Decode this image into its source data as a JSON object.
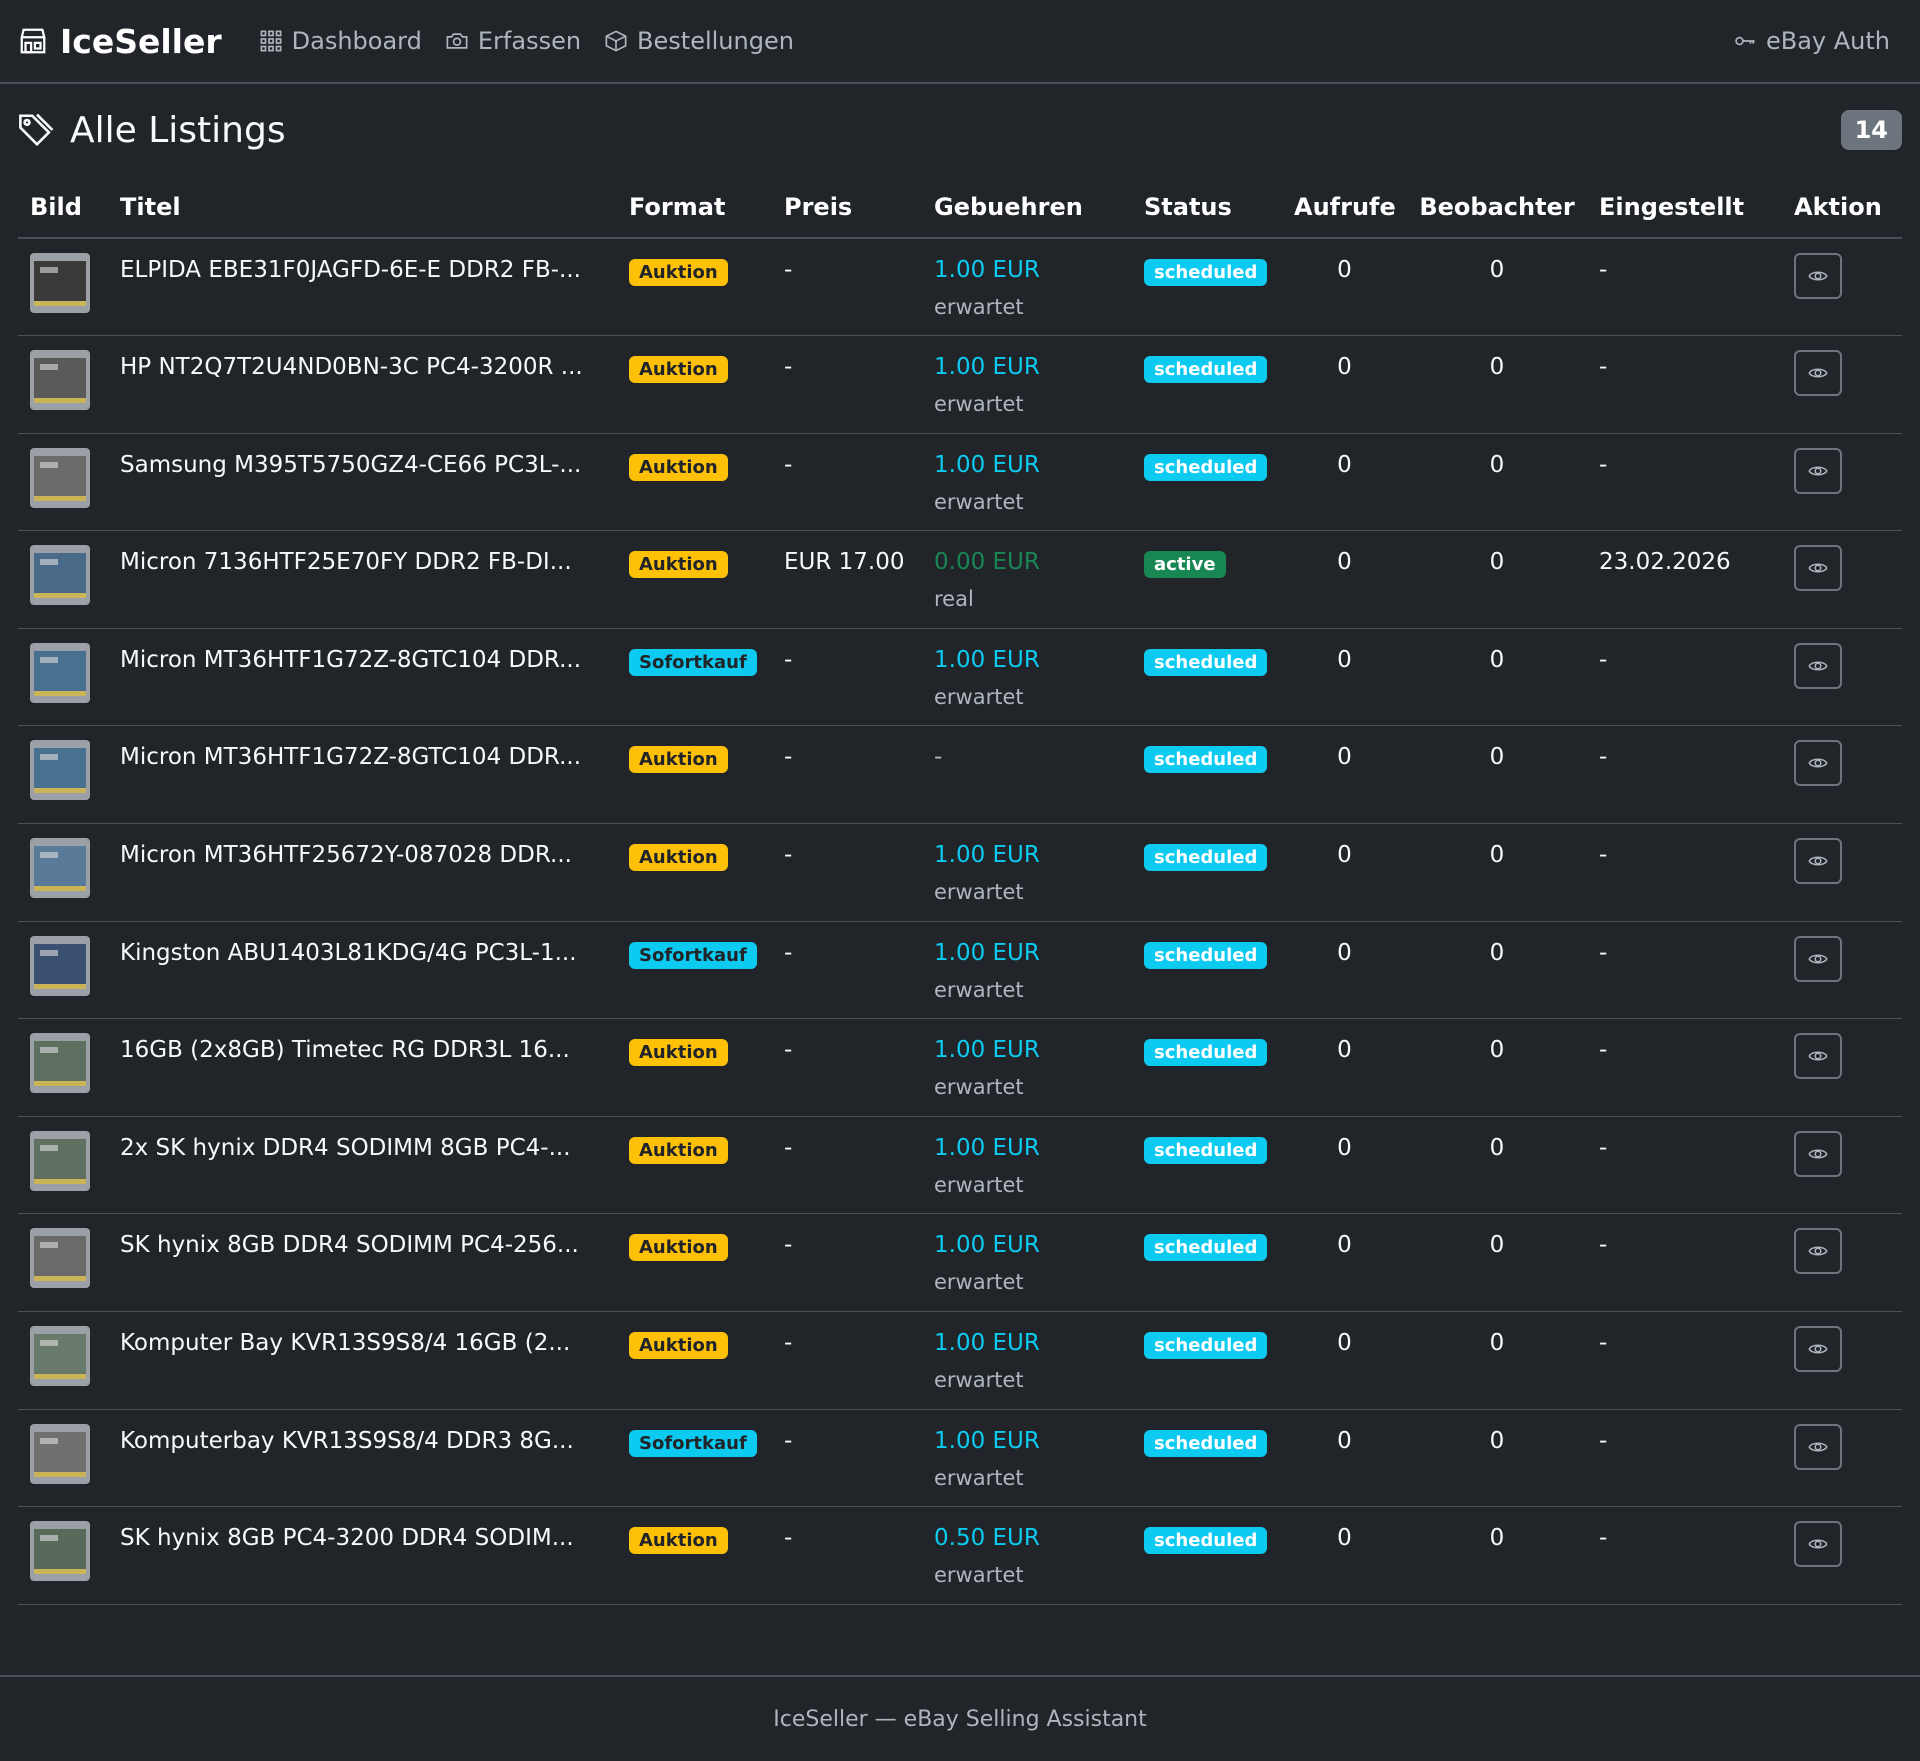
{
  "nav": {
    "brand": "IceSeller",
    "links": [
      {
        "label": "Dashboard",
        "icon": "grid-icon"
      },
      {
        "label": "Erfassen",
        "icon": "camera-icon"
      },
      {
        "label": "Bestellungen",
        "icon": "box-icon"
      }
    ],
    "auth_label": "eBay Auth"
  },
  "page": {
    "title": "Alle Listings",
    "count": "14"
  },
  "table": {
    "headers": [
      "Bild",
      "Titel",
      "Format",
      "Preis",
      "Gebuehren",
      "Status",
      "Aufrufe",
      "Beobachter",
      "Eingestellt",
      "Aktion"
    ],
    "rows": [
      {
        "title": "ELPIDA EBE31F0JAGFD-6E-E DDR2 FB-...",
        "format": "Auktion",
        "price": "-",
        "fee": "1.00 EUR",
        "fee_note": "erwartet",
        "status": "scheduled",
        "views": "0",
        "watchers": "0",
        "listed": "-",
        "thumb": "#3a3a3a"
      },
      {
        "title": "HP NT2Q7T2U4ND0BN-3C PC4-3200R ...",
        "format": "Auktion",
        "price": "-",
        "fee": "1.00 EUR",
        "fee_note": "erwartet",
        "status": "scheduled",
        "views": "0",
        "watchers": "0",
        "listed": "-",
        "thumb": "#5a5a5a"
      },
      {
        "title": "Samsung M395T5750GZ4-CE66 PC3L-...",
        "format": "Auktion",
        "price": "-",
        "fee": "1.00 EUR",
        "fee_note": "erwartet",
        "status": "scheduled",
        "views": "0",
        "watchers": "0",
        "listed": "-",
        "thumb": "#6b6b6b"
      },
      {
        "title": "Micron 7136HTF25E70FY DDR2 FB-DI...",
        "format": "Auktion",
        "price": "EUR 17.00",
        "fee": "0.00 EUR",
        "fee_note": "real",
        "status": "active",
        "views": "0",
        "watchers": "0",
        "listed": "23.02.2026",
        "thumb": "#4a6a8a"
      },
      {
        "title": "Micron MT36HTF1G72Z-8GTC104 DDR...",
        "format": "Sofortkauf",
        "price": "-",
        "fee": "1.00 EUR",
        "fee_note": "erwartet",
        "status": "scheduled",
        "views": "0",
        "watchers": "0",
        "listed": "-",
        "thumb": "#4a7090"
      },
      {
        "title": "Micron MT36HTF1G72Z-8GTC104 DDR...",
        "format": "Auktion",
        "price": "-",
        "fee": "-",
        "fee_note": "",
        "status": "scheduled",
        "views": "0",
        "watchers": "0",
        "listed": "-",
        "thumb": "#4a7090"
      },
      {
        "title": "Micron MT36HTF25672Y-087028 DDR...",
        "format": "Auktion",
        "price": "-",
        "fee": "1.00 EUR",
        "fee_note": "erwartet",
        "status": "scheduled",
        "views": "0",
        "watchers": "0",
        "listed": "-",
        "thumb": "#5a7a9a"
      },
      {
        "title": "Kingston ABU1403L81KDG/4G PC3L-1...",
        "format": "Sofortkauf",
        "price": "-",
        "fee": "1.00 EUR",
        "fee_note": "erwartet",
        "status": "scheduled",
        "views": "0",
        "watchers": "0",
        "listed": "-",
        "thumb": "#3a5070"
      },
      {
        "title": "16GB (2x8GB) Timetec RG DDR3L 16...",
        "format": "Auktion",
        "price": "-",
        "fee": "1.00 EUR",
        "fee_note": "erwartet",
        "status": "scheduled",
        "views": "0",
        "watchers": "0",
        "listed": "-",
        "thumb": "#5f6f5f"
      },
      {
        "title": "2x SK hynix DDR4 SODIMM 8GB PC4-...",
        "format": "Auktion",
        "price": "-",
        "fee": "1.00 EUR",
        "fee_note": "erwartet",
        "status": "scheduled",
        "views": "0",
        "watchers": "0",
        "listed": "-",
        "thumb": "#607060"
      },
      {
        "title": "SK hynix 8GB DDR4 SODIMM PC4-256...",
        "format": "Auktion",
        "price": "-",
        "fee": "1.00 EUR",
        "fee_note": "erwartet",
        "status": "scheduled",
        "views": "0",
        "watchers": "0",
        "listed": "-",
        "thumb": "#6a6a6a"
      },
      {
        "title": "Komputer Bay KVR13S9S8/4 16GB (2...",
        "format": "Auktion",
        "price": "-",
        "fee": "1.00 EUR",
        "fee_note": "erwartet",
        "status": "scheduled",
        "views": "0",
        "watchers": "0",
        "listed": "-",
        "thumb": "#6a7a6a"
      },
      {
        "title": "Komputerbay KVR13S9S8/4 DDR3 8G...",
        "format": "Sofortkauf",
        "price": "-",
        "fee": "1.00 EUR",
        "fee_note": "erwartet",
        "status": "scheduled",
        "views": "0",
        "watchers": "0",
        "listed": "-",
        "thumb": "#707070"
      },
      {
        "title": "SK hynix 8GB PC4-3200 DDR4 SODIM...",
        "format": "Auktion",
        "price": "-",
        "fee": "0.50 EUR",
        "fee_note": "erwartet",
        "status": "scheduled",
        "views": "0",
        "watchers": "0",
        "listed": "-",
        "thumb": "#5a6a5a"
      }
    ]
  },
  "footer": {
    "text": "IceSeller — eBay Selling Assistant"
  },
  "colors": {
    "background": "#212529",
    "badge_auktion": "#ffc107",
    "badge_sofortkauf": "#0dcaf0",
    "badge_scheduled": "#0dcaf0",
    "badge_active": "#198754",
    "fee_expected": "#0dcaf0",
    "fee_real": "#198754"
  },
  "icons": {
    "brand": "shop-icon",
    "title": "tags-icon",
    "auth": "key-icon",
    "action": "eye-icon"
  }
}
